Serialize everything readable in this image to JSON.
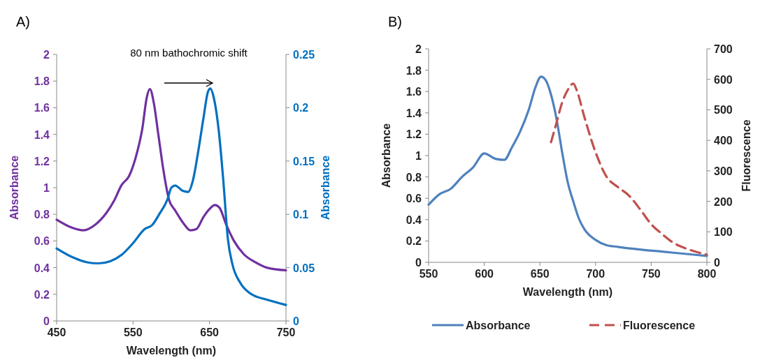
{
  "chart_data": [
    {
      "type": "line",
      "title": "A)",
      "xlabel": "Wavelength (nm)",
      "ylabel": "Absorbance",
      "y2label": "Absorbance",
      "annotations": [
        "80 nm bathochromic shift"
      ],
      "xlim": [
        450,
        750
      ],
      "xticks": [
        450,
        550,
        650,
        750
      ],
      "ylim": [
        0,
        2
      ],
      "yticks": [
        0,
        0.2,
        0.4,
        0.6,
        0.8,
        1,
        1.2,
        1.4,
        1.6,
        1.8,
        2
      ],
      "y2lim": [
        0,
        0.25
      ],
      "y2ticks": [
        0,
        0.05,
        0.1,
        0.15,
        0.2,
        0.25
      ],
      "grid": false,
      "legend": false,
      "series": [
        {
          "color": "#7030a0",
          "x": [
            450,
            470,
            485,
            500,
            515,
            525,
            535,
            545,
            555,
            562,
            568,
            572,
            577,
            583,
            590,
            597,
            605,
            615,
            625,
            633,
            642,
            650,
            657,
            663,
            672,
            682,
            695,
            710,
            725,
            750
          ],
          "values": [
            0.76,
            0.7,
            0.68,
            0.72,
            0.81,
            0.9,
            1.02,
            1.09,
            1.26,
            1.44,
            1.68,
            1.74,
            1.64,
            1.4,
            1.12,
            0.91,
            0.83,
            0.74,
            0.68,
            0.69,
            0.78,
            0.84,
            0.87,
            0.85,
            0.72,
            0.6,
            0.5,
            0.44,
            0.4,
            0.38
          ]
        },
        {
          "color": "#0070c0",
          "axis": "y2",
          "x": [
            450,
            470,
            490,
            505,
            520,
            535,
            550,
            565,
            575,
            585,
            595,
            600,
            605,
            615,
            622,
            628,
            635,
            642,
            648,
            651,
            656,
            662,
            668,
            674,
            680,
            690,
            705,
            725,
            750
          ],
          "values": [
            0.068,
            0.06,
            0.055,
            0.054,
            0.056,
            0.062,
            0.073,
            0.086,
            0.09,
            0.101,
            0.114,
            0.125,
            0.127,
            0.122,
            0.121,
            0.131,
            0.158,
            0.19,
            0.215,
            0.218,
            0.208,
            0.179,
            0.132,
            0.077,
            0.053,
            0.036,
            0.025,
            0.02,
            0.015
          ]
        }
      ]
    },
    {
      "type": "line",
      "title": "B)",
      "xlabel": "Wavelength (nm)",
      "ylabel": "Absorbance",
      "y2label": "Fluorescence",
      "xlim": [
        550,
        800
      ],
      "xticks": [
        550,
        600,
        650,
        700,
        750,
        800
      ],
      "ylim": [
        0,
        2
      ],
      "yticks": [
        0,
        0.2,
        0.4,
        0.6,
        0.8,
        1,
        1.2,
        1.4,
        1.6,
        1.8,
        2
      ],
      "y2lim": [
        0,
        700
      ],
      "y2ticks": [
        0,
        100,
        200,
        300,
        400,
        500,
        600,
        700
      ],
      "grid": false,
      "legend": "bottom",
      "series": [
        {
          "name": "Absorbance",
          "color": "#4f81bd",
          "line_style": "solid",
          "x": [
            550,
            560,
            570,
            580,
            590,
            600,
            603,
            610,
            618,
            625,
            632,
            640,
            646,
            651,
            655,
            660,
            665,
            670,
            675,
            680,
            685,
            690,
            700,
            710,
            720,
            740,
            760,
            780,
            800
          ],
          "values": [
            0.54,
            0.64,
            0.69,
            0.8,
            0.89,
            1.02,
            1.01,
            0.97,
            0.96,
            1.08,
            1.22,
            1.43,
            1.64,
            1.74,
            1.71,
            1.57,
            1.34,
            1.03,
            0.75,
            0.57,
            0.41,
            0.31,
            0.21,
            0.16,
            0.145,
            0.12,
            0.1,
            0.08,
            0.06
          ]
        },
        {
          "name": "Fluorescence",
          "color": "#c0504d",
          "axis": "y2",
          "line_style": "dashed",
          "x": [
            660,
            665,
            670,
            675,
            680,
            683,
            690,
            700,
            710,
            720,
            730,
            740,
            750,
            760,
            770,
            780,
            790,
            800
          ],
          "values": [
            394,
            459,
            524,
            565,
            586,
            565,
            476,
            361,
            280,
            247,
            219,
            174,
            125,
            92,
            64,
            47,
            35,
            25
          ]
        }
      ]
    }
  ]
}
